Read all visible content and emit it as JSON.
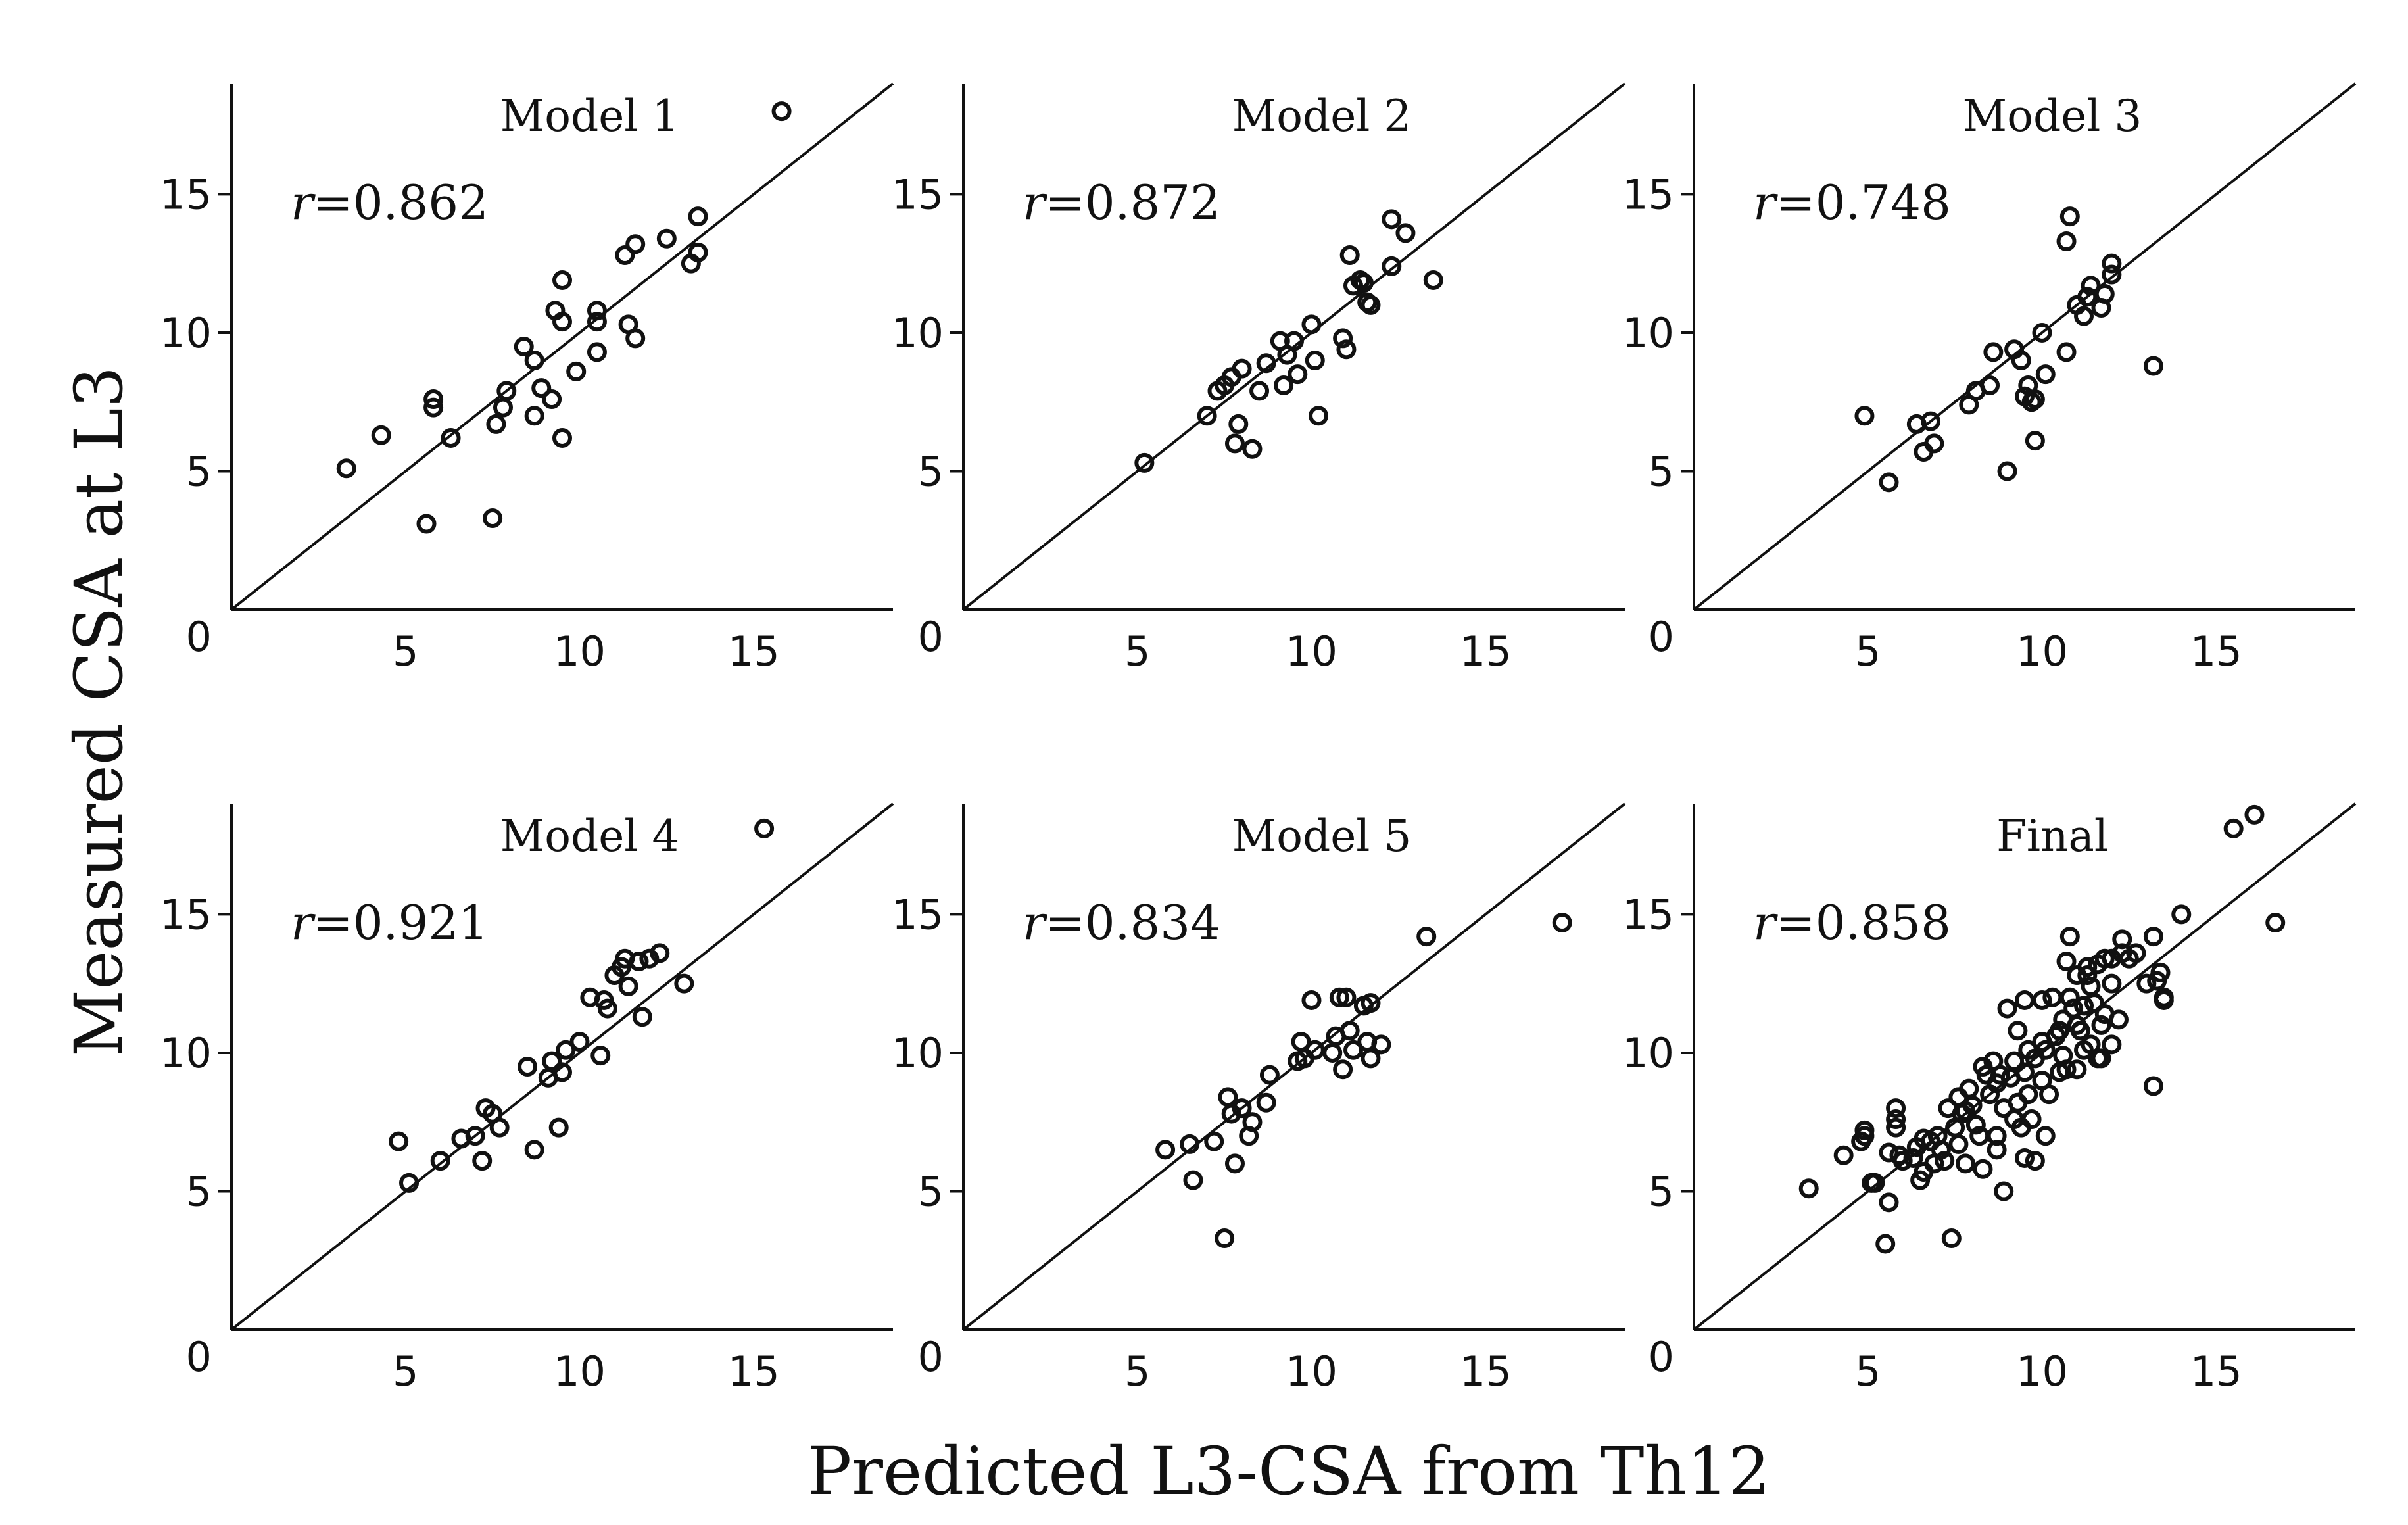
{
  "figure": {
    "xlabel": "Predicted L3-CSA from Th12",
    "ylabel": "Measured CSA at L3"
  },
  "chart_data": [
    {
      "type": "scatter",
      "title": "Model 1",
      "annotation": {
        "r_symbol": "r",
        "r_value": "=0.862"
      },
      "xlim": [
        0,
        19
      ],
      "ylim": [
        0,
        19
      ],
      "xticks": [
        5,
        10,
        15
      ],
      "yticks": [
        5,
        10,
        15
      ],
      "origin_label": "0",
      "reference_line": "y = x",
      "points": [
        [
          3.3,
          5.1
        ],
        [
          4.3,
          6.3
        ],
        [
          5.6,
          3.1
        ],
        [
          5.8,
          7.3
        ],
        [
          5.8,
          7.6
        ],
        [
          6.3,
          6.2
        ],
        [
          7.5,
          3.3
        ],
        [
          7.6,
          6.7
        ],
        [
          7.8,
          7.3
        ],
        [
          7.9,
          7.9
        ],
        [
          8.4,
          9.5
        ],
        [
          8.7,
          9.0
        ],
        [
          8.7,
          7.0
        ],
        [
          8.9,
          8.0
        ],
        [
          9.2,
          7.6
        ],
        [
          9.3,
          10.8
        ],
        [
          9.5,
          6.2
        ],
        [
          9.5,
          10.4
        ],
        [
          9.5,
          11.9
        ],
        [
          9.9,
          8.6
        ],
        [
          10.5,
          9.3
        ],
        [
          10.5,
          10.8
        ],
        [
          10.5,
          10.4
        ],
        [
          11.3,
          12.8
        ],
        [
          11.4,
          10.3
        ],
        [
          11.6,
          13.2
        ],
        [
          11.6,
          9.8
        ],
        [
          12.5,
          13.4
        ],
        [
          13.2,
          12.5
        ],
        [
          13.4,
          14.2
        ],
        [
          13.4,
          12.9
        ],
        [
          15.8,
          18.0
        ]
      ]
    },
    {
      "type": "scatter",
      "title": "Model 2",
      "annotation": {
        "r_symbol": "r",
        "r_value": "=0.872"
      },
      "xlim": [
        0,
        19
      ],
      "ylim": [
        0,
        19
      ],
      "xticks": [
        5,
        10,
        15
      ],
      "yticks": [
        5,
        10,
        15
      ],
      "origin_label": "0",
      "reference_line": "y = x",
      "points": [
        [
          5.2,
          5.3
        ],
        [
          7.0,
          7.0
        ],
        [
          7.3,
          7.9
        ],
        [
          7.5,
          8.1
        ],
        [
          7.7,
          8.4
        ],
        [
          7.8,
          6.0
        ],
        [
          7.9,
          6.7
        ],
        [
          8.0,
          8.7
        ],
        [
          8.3,
          5.8
        ],
        [
          8.5,
          7.9
        ],
        [
          8.7,
          8.9
        ],
        [
          9.1,
          9.7
        ],
        [
          9.2,
          8.1
        ],
        [
          9.3,
          9.2
        ],
        [
          9.5,
          9.7
        ],
        [
          9.6,
          8.5
        ],
        [
          10.0,
          10.3
        ],
        [
          10.1,
          9.0
        ],
        [
          10.2,
          7.0
        ],
        [
          10.9,
          9.8
        ],
        [
          11.0,
          9.4
        ],
        [
          11.1,
          12.8
        ],
        [
          11.2,
          11.7
        ],
        [
          11.4,
          11.9
        ],
        [
          11.5,
          11.8
        ],
        [
          11.6,
          11.1
        ],
        [
          11.7,
          11.0
        ],
        [
          12.3,
          14.1
        ],
        [
          12.3,
          12.4
        ],
        [
          12.7,
          13.6
        ],
        [
          13.5,
          11.9
        ]
      ]
    },
    {
      "type": "scatter",
      "title": "Model 3",
      "annotation": {
        "r_symbol": "r",
        "r_value": "=0.748"
      },
      "xlim": [
        0,
        19
      ],
      "ylim": [
        0,
        19
      ],
      "xticks": [
        5,
        10,
        15
      ],
      "yticks": [
        5,
        10,
        15
      ],
      "origin_label": "0",
      "reference_line": "y = x",
      "points": [
        [
          4.9,
          7.0
        ],
        [
          5.6,
          4.6
        ],
        [
          6.4,
          6.7
        ],
        [
          6.6,
          5.7
        ],
        [
          6.8,
          6.8
        ],
        [
          6.9,
          6.0
        ],
        [
          7.9,
          7.4
        ],
        [
          8.1,
          7.9
        ],
        [
          8.5,
          8.1
        ],
        [
          8.6,
          9.3
        ],
        [
          9.0,
          5.0
        ],
        [
          9.2,
          9.4
        ],
        [
          9.4,
          9.0
        ],
        [
          9.5,
          7.7
        ],
        [
          9.6,
          8.1
        ],
        [
          9.7,
          7.5
        ],
        [
          9.8,
          6.1
        ],
        [
          9.8,
          7.6
        ],
        [
          10.0,
          10.0
        ],
        [
          10.1,
          8.5
        ],
        [
          10.7,
          9.3
        ],
        [
          10.7,
          13.3
        ],
        [
          10.8,
          14.2
        ],
        [
          11.0,
          11.0
        ],
        [
          11.2,
          10.6
        ],
        [
          11.3,
          11.3
        ],
        [
          11.4,
          11.7
        ],
        [
          11.7,
          10.9
        ],
        [
          11.8,
          11.4
        ],
        [
          12.0,
          12.5
        ],
        [
          12.0,
          12.1
        ],
        [
          13.2,
          8.8
        ]
      ]
    },
    {
      "type": "scatter",
      "title": "Model 4",
      "annotation": {
        "r_symbol": "r",
        "r_value": "=0.921"
      },
      "xlim": [
        0,
        19
      ],
      "ylim": [
        0,
        19
      ],
      "xticks": [
        5,
        10,
        15
      ],
      "yticks": [
        5,
        10,
        15
      ],
      "origin_label": "0",
      "reference_line": "y = x",
      "points": [
        [
          4.8,
          6.8
        ],
        [
          5.1,
          5.3
        ],
        [
          6.0,
          6.1
        ],
        [
          6.6,
          6.9
        ],
        [
          7.0,
          7.0
        ],
        [
          7.2,
          6.1
        ],
        [
          7.3,
          8.0
        ],
        [
          7.5,
          7.8
        ],
        [
          7.7,
          7.3
        ],
        [
          8.5,
          9.5
        ],
        [
          8.7,
          6.5
        ],
        [
          9.1,
          9.1
        ],
        [
          9.2,
          9.7
        ],
        [
          9.4,
          7.3
        ],
        [
          9.5,
          9.3
        ],
        [
          9.6,
          10.1
        ],
        [
          10.0,
          10.4
        ],
        [
          10.3,
          12.0
        ],
        [
          10.6,
          9.9
        ],
        [
          10.7,
          11.9
        ],
        [
          10.8,
          11.6
        ],
        [
          11.0,
          12.8
        ],
        [
          11.2,
          13.1
        ],
        [
          11.3,
          13.4
        ],
        [
          11.4,
          12.4
        ],
        [
          11.7,
          13.3
        ],
        [
          11.8,
          11.3
        ],
        [
          12.0,
          13.4
        ],
        [
          12.3,
          13.6
        ],
        [
          13.0,
          12.5
        ],
        [
          15.3,
          18.1
        ]
      ]
    },
    {
      "type": "scatter",
      "title": "Model 5",
      "annotation": {
        "r_symbol": "r",
        "r_value": "=0.834"
      },
      "xlim": [
        0,
        19
      ],
      "ylim": [
        0,
        19
      ],
      "xticks": [
        5,
        10,
        15
      ],
      "yticks": [
        5,
        10,
        15
      ],
      "origin_label": "0",
      "reference_line": "y = x",
      "points": [
        [
          5.8,
          6.5
        ],
        [
          6.5,
          6.7
        ],
        [
          6.6,
          5.4
        ],
        [
          7.2,
          6.8
        ],
        [
          7.5,
          3.3
        ],
        [
          7.6,
          8.4
        ],
        [
          7.7,
          7.8
        ],
        [
          7.8,
          6.0
        ],
        [
          8.0,
          8.0
        ],
        [
          8.2,
          7.0
        ],
        [
          8.3,
          7.5
        ],
        [
          8.7,
          8.2
        ],
        [
          8.8,
          9.2
        ],
        [
          9.6,
          9.7
        ],
        [
          9.7,
          10.4
        ],
        [
          9.8,
          9.8
        ],
        [
          10.0,
          11.9
        ],
        [
          10.1,
          10.1
        ],
        [
          10.6,
          10.0
        ],
        [
          10.7,
          10.6
        ],
        [
          10.8,
          12.0
        ],
        [
          10.9,
          9.4
        ],
        [
          11.0,
          12.0
        ],
        [
          11.1,
          10.8
        ],
        [
          11.2,
          10.1
        ],
        [
          11.5,
          11.7
        ],
        [
          11.6,
          10.4
        ],
        [
          11.7,
          9.8
        ],
        [
          11.7,
          11.8
        ],
        [
          12.0,
          10.3
        ],
        [
          13.3,
          14.2
        ],
        [
          17.2,
          14.7
        ]
      ]
    },
    {
      "type": "scatter",
      "title": "Final",
      "annotation": {
        "r_symbol": "r",
        "r_value": "=0.858"
      },
      "xlim": [
        0,
        19
      ],
      "ylim": [
        0,
        19
      ],
      "xticks": [
        5,
        10,
        15
      ],
      "yticks": [
        5,
        10,
        15
      ],
      "origin_label": "0",
      "reference_line": "y = x",
      "points": [
        [
          3.3,
          5.1
        ],
        [
          4.3,
          6.3
        ],
        [
          4.8,
          6.8
        ],
        [
          4.9,
          7.0
        ],
        [
          4.9,
          7.2
        ],
        [
          5.1,
          5.3
        ],
        [
          5.2,
          5.3
        ],
        [
          5.5,
          3.1
        ],
        [
          5.6,
          4.6
        ],
        [
          5.6,
          6.4
        ],
        [
          5.8,
          7.3
        ],
        [
          5.8,
          7.6
        ],
        [
          5.8,
          8.0
        ],
        [
          5.9,
          6.3
        ],
        [
          6.0,
          6.1
        ],
        [
          6.3,
          6.2
        ],
        [
          6.4,
          6.6
        ],
        [
          6.5,
          5.4
        ],
        [
          6.6,
          5.7
        ],
        [
          6.6,
          6.9
        ],
        [
          6.8,
          6.8
        ],
        [
          6.9,
          6.0
        ],
        [
          7.0,
          7.0
        ],
        [
          7.1,
          6.5
        ],
        [
          7.2,
          6.1
        ],
        [
          7.3,
          8.0
        ],
        [
          7.4,
          3.3
        ],
        [
          7.5,
          7.3
        ],
        [
          7.6,
          6.7
        ],
        [
          7.6,
          8.4
        ],
        [
          7.7,
          7.8
        ],
        [
          7.8,
          6.0
        ],
        [
          7.8,
          7.9
        ],
        [
          7.9,
          8.7
        ],
        [
          8.0,
          8.1
        ],
        [
          8.1,
          7.4
        ],
        [
          8.2,
          7.0
        ],
        [
          8.3,
          5.8
        ],
        [
          8.3,
          9.5
        ],
        [
          8.4,
          9.2
        ],
        [
          8.5,
          8.5
        ],
        [
          8.6,
          9.7
        ],
        [
          8.7,
          7.0
        ],
        [
          8.7,
          8.9
        ],
        [
          8.7,
          6.5
        ],
        [
          8.8,
          9.2
        ],
        [
          8.9,
          8.0
        ],
        [
          8.9,
          5.0
        ],
        [
          9.0,
          11.6
        ],
        [
          9.1,
          9.1
        ],
        [
          9.2,
          9.7
        ],
        [
          9.2,
          7.6
        ],
        [
          9.3,
          8.2
        ],
        [
          9.3,
          10.8
        ],
        [
          9.4,
          7.3
        ],
        [
          9.5,
          6.2
        ],
        [
          9.5,
          9.3
        ],
        [
          9.5,
          11.9
        ],
        [
          9.6,
          8.5
        ],
        [
          9.6,
          10.1
        ],
        [
          9.7,
          7.6
        ],
        [
          9.8,
          6.1
        ],
        [
          9.8,
          9.8
        ],
        [
          10.0,
          10.4
        ],
        [
          10.0,
          11.9
        ],
        [
          10.0,
          9.0
        ],
        [
          10.1,
          7.0
        ],
        [
          10.1,
          10.1
        ],
        [
          10.2,
          8.5
        ],
        [
          10.3,
          12.0
        ],
        [
          10.4,
          10.6
        ],
        [
          10.5,
          9.3
        ],
        [
          10.5,
          10.8
        ],
        [
          10.6,
          9.9
        ],
        [
          10.6,
          11.2
        ],
        [
          10.7,
          13.3
        ],
        [
          10.7,
          9.4
        ],
        [
          10.8,
          14.2
        ],
        [
          10.8,
          12.0
        ],
        [
          10.9,
          11.6
        ],
        [
          11.0,
          11.0
        ],
        [
          11.0,
          12.8
        ],
        [
          11.0,
          9.4
        ],
        [
          11.1,
          10.8
        ],
        [
          11.2,
          11.7
        ],
        [
          11.2,
          10.1
        ],
        [
          11.3,
          13.1
        ],
        [
          11.3,
          12.8
        ],
        [
          11.4,
          12.4
        ],
        [
          11.4,
          10.3
        ],
        [
          11.5,
          11.8
        ],
        [
          11.6,
          13.2
        ],
        [
          11.6,
          9.8
        ],
        [
          11.7,
          11.0
        ],
        [
          11.7,
          9.8
        ],
        [
          11.8,
          11.4
        ],
        [
          11.8,
          13.4
        ],
        [
          12.0,
          12.5
        ],
        [
          12.0,
          10.3
        ],
        [
          12.0,
          13.4
        ],
        [
          12.2,
          11.2
        ],
        [
          12.3,
          13.6
        ],
        [
          12.3,
          14.1
        ],
        [
          12.5,
          13.4
        ],
        [
          12.7,
          13.6
        ],
        [
          13.0,
          12.5
        ],
        [
          13.2,
          8.8
        ],
        [
          13.2,
          14.2
        ],
        [
          13.3,
          12.6
        ],
        [
          13.4,
          12.9
        ],
        [
          13.5,
          12.0
        ],
        [
          13.5,
          11.9
        ],
        [
          14.0,
          15.0
        ],
        [
          15.5,
          18.1
        ],
        [
          16.1,
          18.6
        ],
        [
          16.7,
          14.7
        ]
      ]
    }
  ]
}
